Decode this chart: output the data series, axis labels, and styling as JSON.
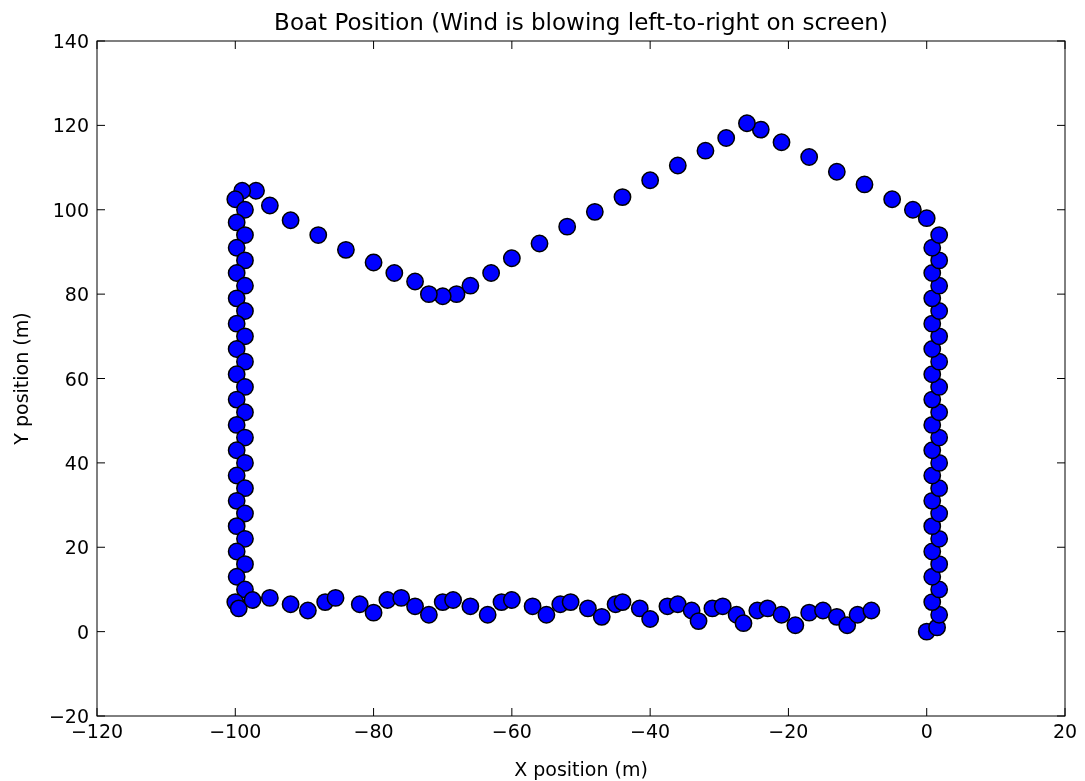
{
  "chart_data": {
    "type": "scatter",
    "title": "Boat Position (Wind is blowing left-to-right on screen)",
    "xlabel": "X position (m)",
    "ylabel": "Y position (m)",
    "xlim": [
      -120,
      20
    ],
    "ylim": [
      -20,
      140
    ],
    "xticks": [
      -120,
      -100,
      -80,
      -60,
      -40,
      -20,
      0,
      20
    ],
    "yticks": [
      -20,
      0,
      20,
      40,
      60,
      80,
      100,
      120,
      140
    ],
    "grid": false,
    "marker": "circle",
    "color": "#0000ff",
    "x": [
      0,
      1.5,
      1.8,
      0.8,
      1.8,
      0.8,
      1.8,
      0.8,
      1.8,
      0.8,
      1.8,
      0.8,
      1.8,
      0.8,
      1.8,
      0.8,
      1.8,
      0.8,
      1.8,
      0.8,
      1.8,
      0.8,
      1.8,
      0.8,
      1.8,
      0.8,
      1.8,
      0.8,
      1.8,
      0.8,
      1.8,
      0.8,
      1.8,
      0,
      -2,
      -5,
      -9,
      -13,
      -17,
      -21,
      -24,
      -26,
      -29,
      -32,
      -36,
      -40,
      -44,
      -48,
      -52,
      -56,
      -60,
      -63,
      -66,
      -68,
      -70,
      -72,
      -74,
      -77,
      -80,
      -84,
      -88,
      -92,
      -95,
      -97,
      -99,
      -100,
      -98.6,
      -99.8,
      -98.6,
      -99.8,
      -98.6,
      -99.8,
      -98.6,
      -99.8,
      -98.6,
      -99.8,
      -98.6,
      -99.8,
      -98.6,
      -99.8,
      -98.6,
      -99.8,
      -98.6,
      -99.8,
      -98.6,
      -99.8,
      -98.6,
      -99.8,
      -98.6,
      -99.8,
      -98.6,
      -99.8,
      -98.6,
      -99.8,
      -98.6,
      -99.8,
      -98.6,
      -100,
      -99.5,
      -97.5,
      -95,
      -92,
      -89.5,
      -87,
      -85.5,
      -82,
      -80,
      -78,
      -76,
      -74,
      -72,
      -70,
      -68.5,
      -66,
      -63.5,
      -61.5,
      -60,
      -57,
      -55,
      -53,
      -51.5,
      -49,
      -47,
      -45,
      -44,
      -41.5,
      -40,
      -37.5,
      -36,
      -34,
      -33,
      -31,
      -29.5,
      -27.5,
      -26.5,
      -24.5,
      -23,
      -21,
      -19,
      -17,
      -15,
      -13,
      -11.5,
      -10,
      -8
    ],
    "values": [
      0,
      1,
      4,
      7,
      10,
      13,
      16,
      19,
      22,
      25,
      28,
      31,
      34,
      37,
      40,
      43,
      46,
      49,
      52,
      55,
      58,
      61,
      64,
      67,
      70,
      73,
      76,
      79,
      82,
      85,
      88,
      91,
      94,
      98,
      100,
      102.5,
      106,
      109,
      112.5,
      116,
      119,
      120.5,
      117,
      114,
      110.5,
      107,
      103,
      99.5,
      96,
      92,
      88.5,
      85,
      82,
      80,
      79.5,
      80,
      83,
      85,
      87.5,
      90.5,
      94,
      97.5,
      101,
      104.5,
      104.5,
      102.5,
      100,
      97,
      94,
      91,
      88,
      85,
      82,
      79,
      76,
      73,
      70,
      67,
      64,
      61,
      58,
      55,
      52,
      49,
      46,
      43,
      40,
      37,
      34,
      31,
      28,
      25,
      22,
      19,
      16,
      13,
      10,
      7,
      5.5,
      7.5,
      8,
      6.5,
      5,
      7,
      8,
      6.5,
      4.5,
      7.5,
      8,
      6,
      4,
      7,
      7.5,
      6,
      4,
      7,
      7.5,
      6,
      4,
      6.5,
      7,
      5.5,
      3.5,
      6.5,
      7,
      5.5,
      3,
      6,
      6.5,
      5,
      2.5,
      5.5,
      6,
      4,
      2,
      5,
      5.5,
      4,
      1.5,
      4.5,
      5,
      3.5,
      1.5,
      4,
      5
    ]
  }
}
